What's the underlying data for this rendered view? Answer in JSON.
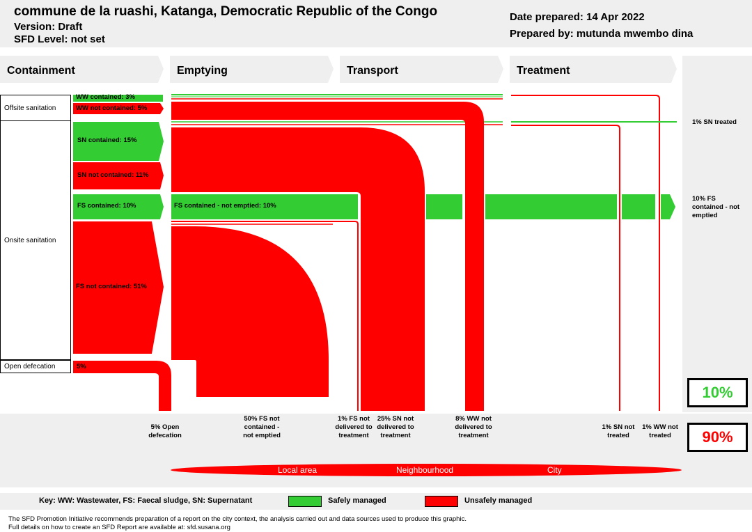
{
  "header": {
    "title": "commune de la ruashi, Katanga, Democratic Republic of the Congo",
    "version": "Version: Draft",
    "sfd_level": "SFD Level: not set",
    "date": "Date prepared: 14 Apr 2022",
    "prepared_by": "Prepared by: mutunda mwembo dina"
  },
  "stages": [
    "Containment",
    "Emptying",
    "Transport",
    "Treatment"
  ],
  "rows": {
    "offsite": "Offsite sanitation",
    "onsite": "Onsite sanitation",
    "open": "Open defecation"
  },
  "segments": {
    "ww_contained": "WW contained: 3%",
    "ww_not_contained": "WW not contained: 5%",
    "sn_contained": "SN contained: 15%",
    "sn_not_contained": "SN not contained: 11%",
    "fs_contained": "FS contained: 10%",
    "fs_not_contained": "FS not contained: 51%",
    "open_def": "5%",
    "fs_contained_not_emptied": "FS contained - not emptied: 10%"
  },
  "right_labels": {
    "sn_treated": "1% SN treated",
    "fs_not_emptied": "10% FS contained - not emptied"
  },
  "bottom_labels": [
    {
      "id": "open",
      "text": "5% Open defecation"
    },
    {
      "id": "fs_not_emptied",
      "text": "50% FS not contained - not emptied"
    },
    {
      "id": "fs_not_delivered",
      "text": "1% FS not delivered to treatment"
    },
    {
      "id": "sn_not_delivered",
      "text": "25% SN not delivered to treatment"
    },
    {
      "id": "ww_not_delivered",
      "text": "8% WW not delivered to treatment"
    },
    {
      "id": "sn_not_treated",
      "text": "1% SN not treated"
    },
    {
      "id": "ww_not_treated",
      "text": "1% WW not treated"
    }
  ],
  "summary": {
    "safe": "10%",
    "unsafe": "90%"
  },
  "zones": [
    "Local area",
    "Neighbourhood",
    "City"
  ],
  "key": {
    "text": "Key: WW: Wastewater, FS: Faecal sludge, SN: Supernatant",
    "safe": "Safely managed",
    "unsafe": "Unsafely managed"
  },
  "footer": {
    "line1": "The SFD Promotion Initiative recommends preparation of a report on the city context, the analysis carried out and data sources used to produce this graphic.",
    "line2": "Full details on how to create an SFD Report are available at: sfd.susana.org"
  },
  "colors": {
    "safe": "#33cc33",
    "unsafe": "#ff0000",
    "band": "#efefef"
  }
}
